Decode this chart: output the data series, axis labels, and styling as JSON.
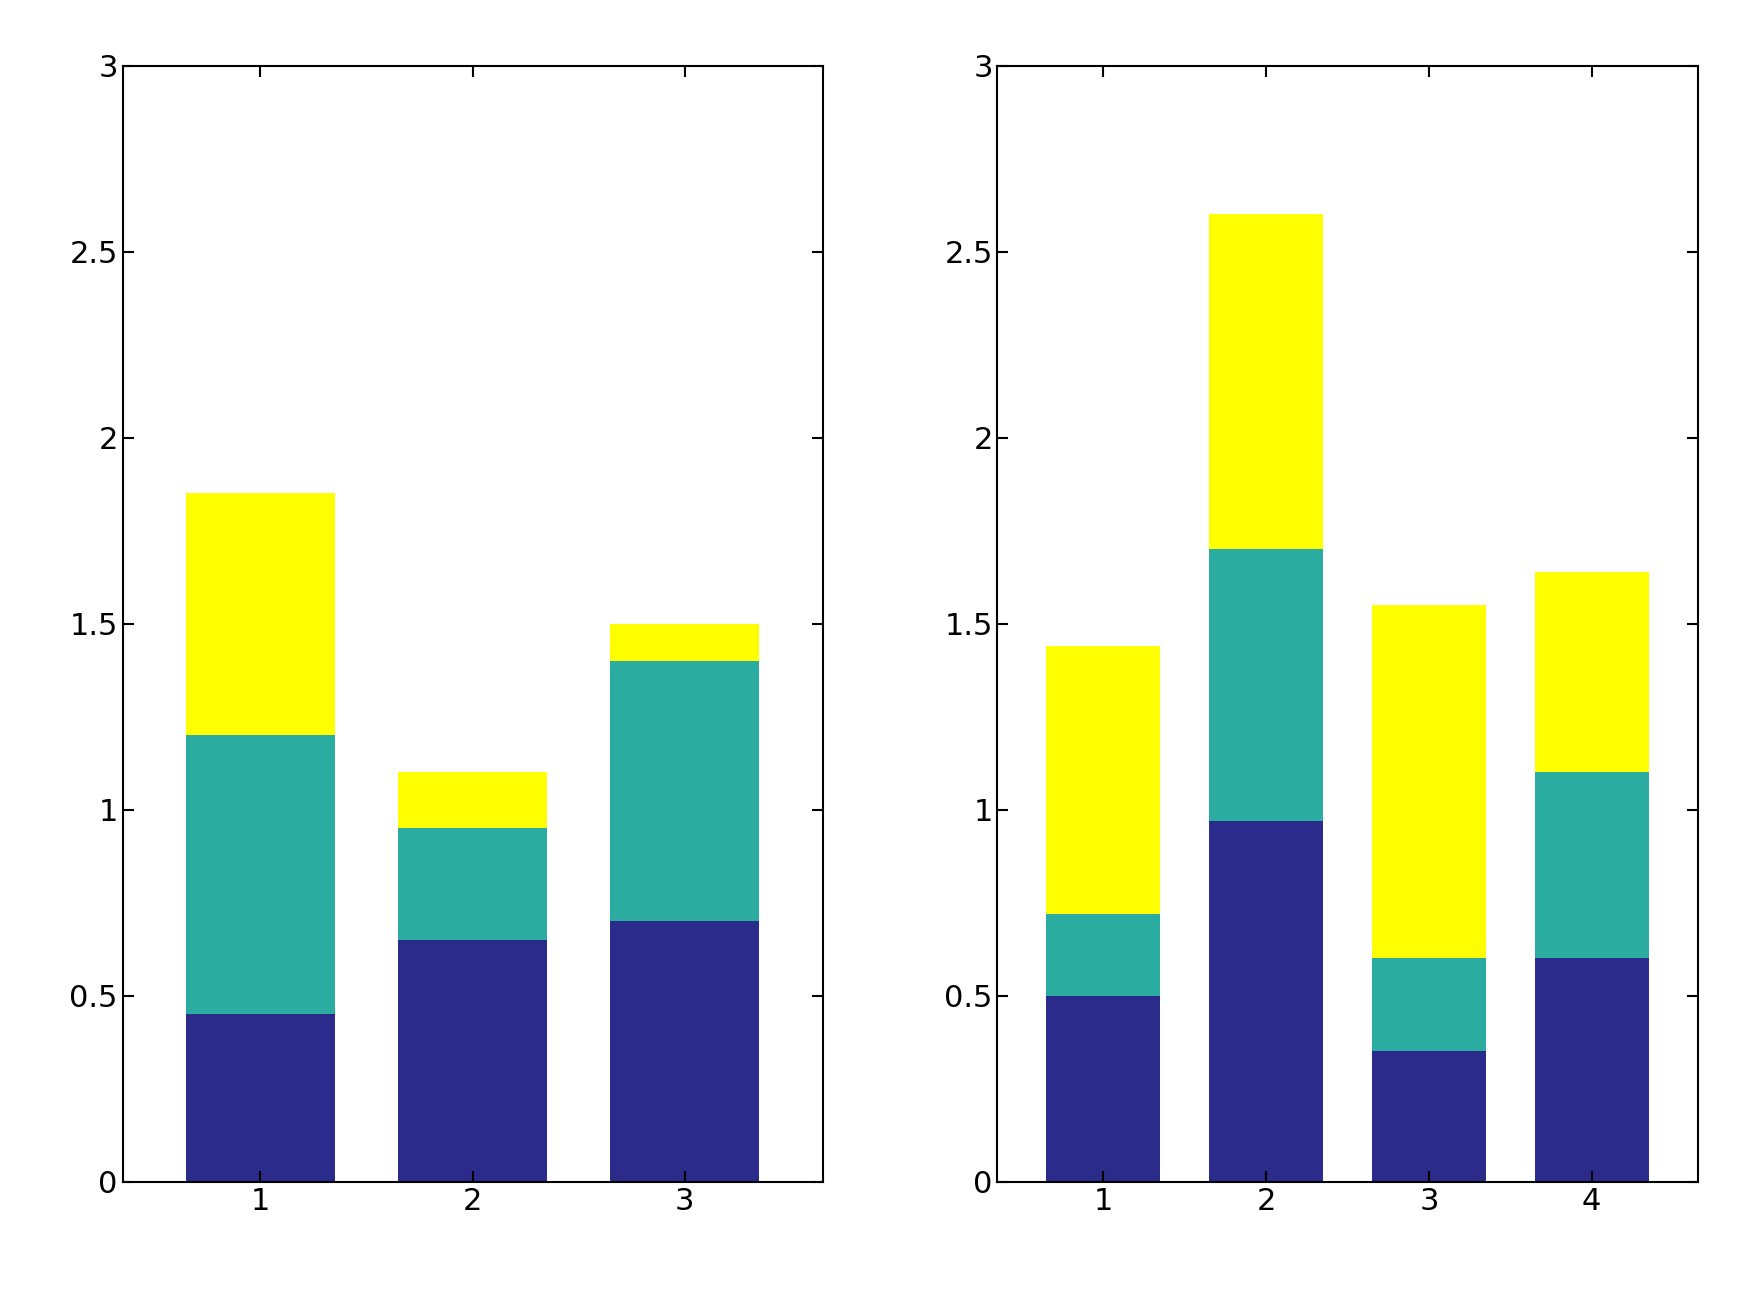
{
  "left_chart": {
    "categories": [
      1,
      2,
      3
    ],
    "blue": [
      0.45,
      0.65,
      0.7
    ],
    "teal": [
      0.75,
      0.3,
      0.7
    ],
    "yellow": [
      0.65,
      0.15,
      0.1
    ]
  },
  "right_chart": {
    "categories": [
      1,
      2,
      3,
      4
    ],
    "blue": [
      0.5,
      0.97,
      0.35,
      0.6
    ],
    "teal": [
      0.22,
      0.73,
      0.25,
      0.5
    ],
    "yellow": [
      0.72,
      0.9,
      0.95,
      0.54
    ]
  },
  "ylim": [
    0,
    3
  ],
  "yticks": [
    0,
    0.5,
    1.0,
    1.5,
    2.0,
    2.5,
    3.0
  ],
  "ytick_labels": [
    "0",
    "0.5",
    "1",
    "1.5",
    "2",
    "2.5",
    "3"
  ],
  "color_blue": "#2B2B8C",
  "color_teal": "#2AADA0",
  "color_yellow": "#FFFF00",
  "bar_width": 0.7,
  "background_color": "#ffffff",
  "tick_fontsize": 22,
  "spine_linewidth": 1.5
}
